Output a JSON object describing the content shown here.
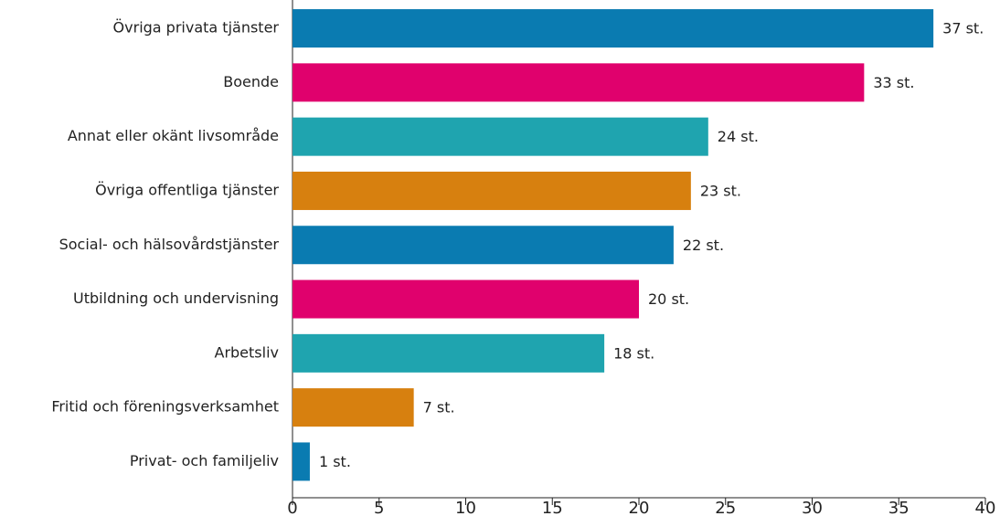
{
  "chart_data": {
    "type": "bar",
    "orientation": "horizontal",
    "categories": [
      "Övriga privata tjänster",
      "Boende",
      "Annat eller okänt livsområde",
      "Övriga offentliga tjänster",
      "Social- och hälsovårdstjänster",
      "Utbildning och undervisning",
      "Arbetsliv",
      "Fritid och föreningsverksamhet",
      "Privat- och familjeliv"
    ],
    "values": [
      37,
      33,
      24,
      23,
      22,
      20,
      18,
      7,
      1
    ],
    "value_labels": [
      "37 st.",
      "33 st.",
      "24 st.",
      "23 st.",
      "22 st.",
      "20 st.",
      "18 st.",
      "7 st.",
      "1 st."
    ],
    "colors": [
      "#0a7bb1",
      "#e0016d",
      "#1fa4af",
      "#d7800f",
      "#0a7bb1",
      "#e0016d",
      "#1fa4af",
      "#d7800f",
      "#0a7bb1"
    ],
    "xlim": [
      0,
      40
    ],
    "xticks": [
      0,
      5,
      10,
      15,
      20,
      25,
      30,
      35,
      40
    ],
    "grid": false
  }
}
